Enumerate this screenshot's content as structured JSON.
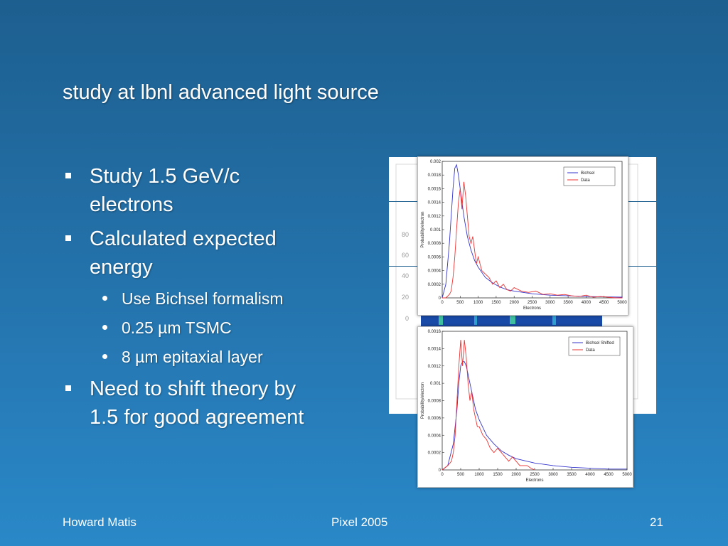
{
  "slide": {
    "title": "study at lbnl advanced light source",
    "bullets": [
      {
        "level": 1,
        "text_lines": [
          "Study 1.5 GeV/c",
          "electrons"
        ]
      },
      {
        "level": 1,
        "text_lines": [
          "Calculated expected",
          "energy"
        ]
      },
      {
        "level": 2,
        "text_lines": [
          "Use Bichsel formalism"
        ]
      },
      {
        "level": 2,
        "text_lines": [
          "0.25 µm TSMC"
        ]
      },
      {
        "level": 2,
        "text_lines": [
          "8 µm epitaxial layer"
        ]
      },
      {
        "level": 1,
        "text_lines": [
          "Need to shift theory by",
          "1.5 for good agreement"
        ]
      }
    ],
    "footer": {
      "left": "Howard Matis",
      "center": "Pixel 2005",
      "right": "21"
    }
  },
  "background_plot_ticks": [
    "80",
    "60",
    "40",
    "20",
    "0"
  ],
  "colors": {
    "theory": "#3333cc",
    "data": "#ee3333",
    "background_top": "#1d5f8f",
    "background_bottom": "#2a88c8"
  },
  "chart_data": [
    {
      "type": "line",
      "xlabel": "Electrons",
      "ylabel": "Probability/electron",
      "xlim": [
        0,
        5000
      ],
      "ylim": [
        0,
        0.002
      ],
      "xticks": [
        "0",
        "500",
        "1000",
        "1500",
        "2000",
        "2500",
        "3000",
        "3500",
        "4000",
        "4500",
        "5000"
      ],
      "yticks": [
        "0",
        "0.0002",
        "0.0004",
        "0.0006",
        "0.0008",
        "0.001",
        "0.0012",
        "0.0014",
        "0.0016",
        "0.0018",
        "0.002"
      ],
      "legend": "top-right",
      "series": [
        {
          "name": "Bichsel",
          "color": "#3333cc",
          "x": [
            0,
            100,
            200,
            300,
            350,
            400,
            450,
            500,
            600,
            700,
            800,
            900,
            1000,
            1200,
            1400,
            1600,
            1800,
            2000,
            2500,
            3000,
            3500,
            4000,
            4500,
            5000
          ],
          "y": [
            0,
            0.0002,
            0.0008,
            0.0016,
            0.0019,
            0.00195,
            0.0018,
            0.0016,
            0.0012,
            0.0009,
            0.0007,
            0.00055,
            0.00045,
            0.0003,
            0.00022,
            0.00016,
            0.00012,
            0.0001,
            6e-05,
            4e-05,
            3e-05,
            2e-05,
            1.5e-05,
            1e-05
          ]
        },
        {
          "name": "Data",
          "color": "#ee3333",
          "x": [
            0,
            100,
            200,
            250,
            300,
            350,
            400,
            450,
            500,
            550,
            600,
            650,
            700,
            750,
            800,
            850,
            900,
            950,
            1000,
            1100,
            1200,
            1300,
            1400,
            1500,
            1600,
            1700,
            1800,
            1900,
            2000,
            2200,
            2400,
            2600,
            2800,
            3000,
            3200,
            3400,
            3600,
            3800,
            4000,
            4200,
            4400,
            4600,
            4800,
            5000
          ],
          "y": [
            0,
            0,
            5e-05,
            0.0001,
            0.0003,
            0.0006,
            0.001,
            0.0014,
            0.0016,
            0.0013,
            0.0017,
            0.0015,
            0.0012,
            0.0009,
            0.0008,
            0.0009,
            0.0007,
            0.0005,
            0.0006,
            0.0004,
            0.00035,
            0.0003,
            0.0002,
            0.00025,
            0.00015,
            0.0002,
            0.00012,
            0.0001,
            0.00015,
            0.0001,
            8e-05,
            0.0001,
            5e-05,
            6e-05,
            4e-05,
            5e-05,
            3e-05,
            2e-05,
            4e-05,
            1e-05,
            2e-05,
            1e-05,
            0,
            0
          ]
        }
      ]
    },
    {
      "type": "line",
      "xlabel": "Electrons",
      "ylabel": "Probability/electron",
      "xlim": [
        0,
        5000
      ],
      "ylim": [
        0,
        0.0016
      ],
      "xticks": [
        "0",
        "500",
        "1000",
        "1500",
        "2000",
        "2500",
        "3000",
        "3500",
        "4000",
        "4500",
        "5000"
      ],
      "yticks": [
        "0",
        "0.0002",
        "0.0004",
        "0.0006",
        "0.0008",
        "0.001",
        "0.0012",
        "0.0014",
        "0.0016"
      ],
      "legend": "top-right",
      "series": [
        {
          "name": "Bichsel Shifted",
          "color": "#3333cc",
          "x": [
            0,
            150,
            300,
            400,
            450,
            500,
            550,
            600,
            650,
            700,
            800,
            900,
            1000,
            1200,
            1400,
            1600,
            1800,
            2000,
            2500,
            3000,
            3500,
            4000,
            4500,
            5000
          ],
          "y": [
            0,
            5e-05,
            0.0003,
            0.0007,
            0.001,
            0.0012,
            0.00125,
            0.00125,
            0.0012,
            0.0011,
            0.0009,
            0.0007,
            0.00058,
            0.0004,
            0.0003,
            0.00022,
            0.00017,
            0.00013,
            8e-05,
            5e-05,
            3e-05,
            2e-05,
            1e-05,
            1e-05
          ]
        },
        {
          "name": "Data",
          "color": "#ee3333",
          "x": [
            0,
            150,
            250,
            300,
            350,
            400,
            450,
            500,
            550,
            600,
            650,
            700,
            750,
            800,
            850,
            900,
            950,
            1000,
            1100,
            1200,
            1300,
            1400,
            1500,
            1600,
            1700,
            1800,
            1900,
            2000,
            2100,
            2200,
            2300,
            2400,
            2500
          ],
          "y": [
            0,
            5e-05,
            0.0001,
            0.0002,
            0.0004,
            0.0008,
            0.0012,
            0.0015,
            0.0012,
            0.0015,
            0.0013,
            0.001,
            0.0008,
            0.0009,
            0.0007,
            0.0006,
            0.0005,
            0.0005,
            0.0004,
            0.00035,
            0.00025,
            0.0002,
            0.00025,
            0.0002,
            0.00015,
            0.0001,
            0.00015,
            0.0001,
            5e-05,
            5e-05,
            5e-05,
            2e-05,
            0
          ]
        }
      ]
    }
  ]
}
